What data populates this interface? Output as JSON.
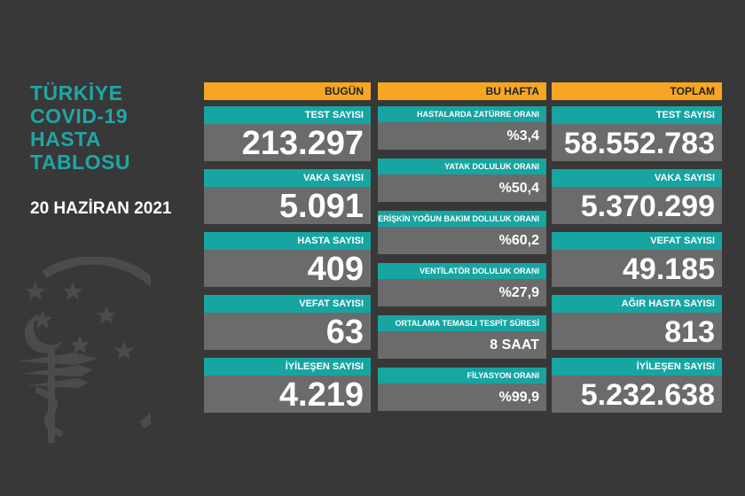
{
  "title": [
    "TÜRKİYE",
    "COVID-19",
    "HASTA",
    "TABLOSU"
  ],
  "date": "20 HAZİRAN 2021",
  "colors": {
    "teal": "#17a5a1",
    "orange": "#f6a623",
    "gray": "#6b6b6b",
    "background": "#383838"
  },
  "today": {
    "header": "BUGÜN",
    "cards": [
      {
        "label": "TEST SAYISI",
        "value": "213.297"
      },
      {
        "label": "VAKA SAYISI",
        "value": "5.091"
      },
      {
        "label": "HASTA SAYISI",
        "value": "409"
      },
      {
        "label": "VEFAT SAYISI",
        "value": "63"
      },
      {
        "label": "İYİLEŞEN SAYISI",
        "value": "4.219"
      }
    ]
  },
  "week": {
    "header": "BU HAFTA",
    "cards": [
      {
        "label": "HASTALARDA ZATÜRRE ORANI",
        "value": "%3,4"
      },
      {
        "label": "YATAK DOLULUK ORANI",
        "value": "%50,4"
      },
      {
        "label": "ERİŞKİN YOĞUN BAKIM DOLULUK ORANI",
        "value": "%60,2"
      },
      {
        "label": "VENTİLATÖR DOLULUK ORANI",
        "value": "%27,9"
      },
      {
        "label": "ORTALAMA TEMASLI TESPİT SÜRESİ",
        "value": "8 SAAT"
      },
      {
        "label": "FİLYASYON ORANI",
        "value": "%99,9"
      }
    ]
  },
  "total": {
    "header": "TOPLAM",
    "cards": [
      {
        "label": "TEST SAYISI",
        "value": "58.552.783"
      },
      {
        "label": "VAKA SAYISI",
        "value": "5.370.299"
      },
      {
        "label": "VEFAT SAYISI",
        "value": "49.185"
      },
      {
        "label": "AĞIR HASTA SAYISI",
        "value": "813"
      },
      {
        "label": "İYİLEŞEN SAYISI",
        "value": "5.232.638"
      }
    ]
  }
}
